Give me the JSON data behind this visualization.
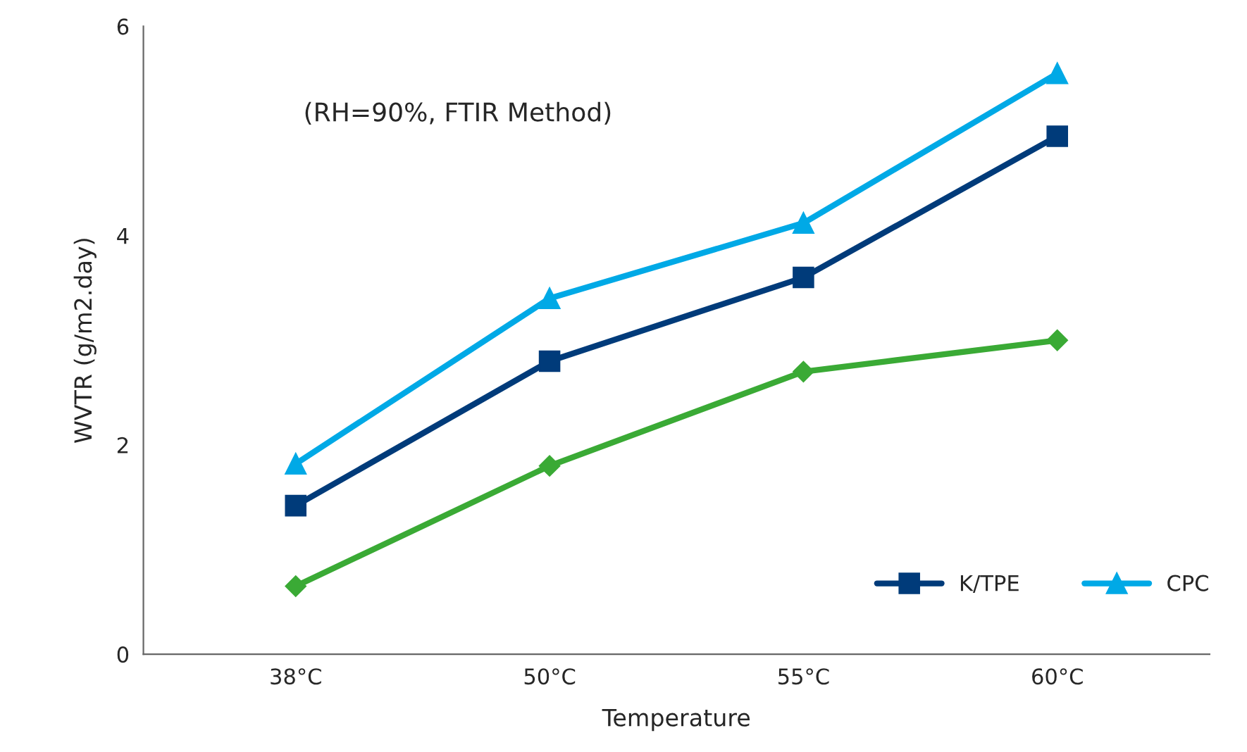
{
  "chart_data": {
    "type": "line",
    "xlabel": "Temperature",
    "ylabel": "WVTR (g/m2.day)",
    "categories": [
      "38°C",
      "50°C",
      "55°C",
      "60°C"
    ],
    "series": [
      {
        "color": "#3aaa35",
        "marker": "diamond",
        "values": [
          0.65,
          1.8,
          2.7,
          3.0
        ]
      },
      {
        "name": "K/TPE",
        "color": "#003b7a",
        "marker": "square",
        "values": [
          1.42,
          2.8,
          3.6,
          4.95
        ]
      },
      {
        "name": "CPC",
        "color": "#00a9e6",
        "marker": "triangle",
        "values": [
          1.82,
          3.4,
          4.12,
          5.55
        ]
      }
    ],
    "ylim": [
      0,
      6
    ],
    "yticks": [
      0,
      2,
      4,
      6
    ],
    "grid": false,
    "legend": "bottom right",
    "annotations": [
      "(RH=90%, FTIR Method)"
    ]
  }
}
